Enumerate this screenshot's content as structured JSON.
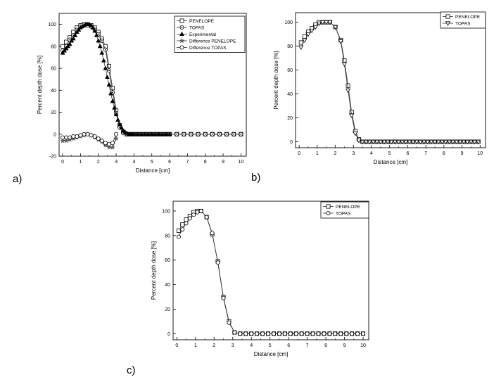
{
  "panel_labels": [
    "a)",
    "b)",
    "c)"
  ],
  "chart_data": [
    {
      "type": "line",
      "panel": "a)",
      "xlabel": "Distance [cm]",
      "ylabel": "Percent depth dose [%]",
      "xlim": [
        -0.2,
        10.3
      ],
      "ylim": [
        -20,
        110
      ],
      "xticks": [
        "0",
        "1",
        "2",
        "3",
        "4",
        "5",
        "6",
        "7",
        "8",
        "9",
        "10"
      ],
      "yticks": [
        "-20",
        "0",
        "20",
        "40",
        "60",
        "80",
        "100"
      ],
      "grid": false,
      "legend_position": "top-right",
      "series": [
        {
          "name": "PENELOPE",
          "marker": "square-open",
          "x": [
            0,
            0.2,
            0.4,
            0.6,
            0.8,
            1.0,
            1.2,
            1.4,
            1.6,
            1.8,
            2.0,
            2.2,
            2.4,
            2.6,
            2.8,
            3.0,
            3.2,
            3.4,
            3.6,
            3.8,
            4.0,
            4.2,
            4.4,
            4.6,
            4.8,
            5.0,
            5.2,
            5.4,
            5.6,
            5.8,
            6.0,
            6.4,
            6.8,
            7.2,
            7.6,
            8.0,
            8.4,
            8.8,
            9.2,
            9.6,
            10.0
          ],
          "y": [
            80,
            84,
            88,
            93,
            97,
            99,
            100,
            100,
            99,
            97,
            93,
            87,
            80,
            62,
            42,
            22,
            8,
            2,
            0,
            0,
            0,
            0,
            0,
            0,
            0,
            0,
            0,
            0,
            0,
            0,
            0,
            0,
            0,
            0,
            0,
            0,
            0,
            0,
            0,
            0,
            0
          ]
        },
        {
          "name": "TOPAS",
          "marker": "circle-dot",
          "x": [
            0,
            0.2,
            0.4,
            0.6,
            0.8,
            1.0,
            1.2,
            1.4,
            1.6,
            1.8,
            2.0,
            2.2,
            2.4,
            2.6,
            2.8,
            3.0,
            3.2,
            3.4,
            3.6,
            3.8,
            4.0,
            4.2,
            4.4,
            4.6,
            4.8,
            5.0,
            5.2,
            5.4,
            5.6,
            5.8,
            6.0,
            6.4,
            6.8,
            7.2,
            7.6,
            8.0,
            8.4,
            8.8,
            9.2,
            9.6,
            10.0
          ],
          "y": [
            76,
            80,
            86,
            90,
            95,
            98,
            100,
            99,
            98,
            95,
            91,
            85,
            77,
            58,
            38,
            19,
            6,
            1,
            0,
            0,
            0,
            0,
            0,
            0,
            0,
            0,
            0,
            0,
            0,
            0,
            0,
            0,
            0,
            0,
            0,
            0,
            0,
            0,
            0,
            0,
            0
          ]
        },
        {
          "name": "Experimental",
          "marker": "triangle-filled",
          "x": [
            0,
            0.1,
            0.2,
            0.3,
            0.4,
            0.5,
            0.6,
            0.7,
            0.8,
            0.9,
            1.0,
            1.1,
            1.2,
            1.3,
            1.4,
            1.5,
            1.6,
            1.7,
            1.8,
            1.9,
            2.0,
            2.1,
            2.2,
            2.3,
            2.4,
            2.5,
            2.6,
            2.7,
            2.8,
            2.9,
            3.0,
            3.1,
            3.2,
            3.3,
            3.4,
            3.5,
            3.6,
            3.7,
            3.8,
            3.9,
            4.0,
            4.2,
            4.4,
            4.6,
            4.8,
            5.0,
            5.2,
            5.4,
            5.6,
            5.8,
            6.0
          ],
          "y": [
            74,
            76,
            78,
            80,
            82,
            85,
            87,
            90,
            93,
            95,
            97,
            98,
            99,
            100,
            100,
            100,
            99,
            97,
            94,
            90,
            85,
            80,
            74,
            67,
            60,
            52,
            45,
            37,
            30,
            24,
            18,
            13,
            9,
            6,
            3,
            2,
            1,
            0,
            0,
            0,
            0,
            0,
            0,
            0,
            0,
            0,
            0,
            0,
            0,
            0,
            0
          ]
        },
        {
          "name": "Difference PENELOPE",
          "marker": "star",
          "x": [
            0,
            0.2,
            0.4,
            0.6,
            0.8,
            1.0,
            1.2,
            1.4,
            1.6,
            1.8,
            2.0,
            2.2,
            2.4,
            2.6,
            2.8,
            3.0
          ],
          "y": [
            -6,
            -6,
            -5,
            -4,
            -3,
            -2,
            -1,
            0,
            -1,
            -3,
            -5,
            -7,
            -10,
            -12,
            -12,
            -4
          ]
        },
        {
          "name": "Difference TOPAS",
          "marker": "circle-open",
          "x": [
            0,
            0.2,
            0.4,
            0.6,
            0.8,
            1.0,
            1.2,
            1.4,
            1.6,
            1.8,
            2.0,
            2.2,
            2.4,
            2.6,
            2.8,
            3.0
          ],
          "y": [
            -3,
            -3,
            -3,
            -2,
            -2,
            -1,
            0,
            0,
            -1,
            -2,
            -4,
            -6,
            -8,
            -9,
            -8,
            0
          ]
        }
      ]
    },
    {
      "type": "line",
      "panel": "b)",
      "xlabel": "Distance [cm]",
      "ylabel": "Percent depth dose [%]",
      "xlim": [
        -0.2,
        10.3
      ],
      "ylim": [
        -5,
        108
      ],
      "xticks": [
        "0",
        "1",
        "2",
        "3",
        "4",
        "5",
        "6",
        "7",
        "8",
        "9",
        "10"
      ],
      "yticks": [
        "0",
        "20",
        "40",
        "60",
        "80",
        "100"
      ],
      "grid": false,
      "legend_position": "top-right",
      "series": [
        {
          "name": "PENELOPE",
          "marker": "square-open",
          "x": [
            0.1,
            0.3,
            0.5,
            0.7,
            0.9,
            1.1,
            1.3,
            1.5,
            1.7,
            2.0,
            2.3,
            2.5,
            2.7,
            2.9,
            3.1,
            3.3,
            3.5,
            3.7,
            3.9,
            4.1,
            4.3,
            4.5,
            4.7,
            4.9,
            5.1,
            5.3,
            5.5,
            5.7,
            5.9,
            6.1,
            6.3,
            6.5,
            6.7,
            6.9,
            7.1,
            7.3,
            7.5,
            7.7,
            7.9,
            8.1,
            8.3,
            8.5,
            8.7,
            8.9,
            9.1,
            9.3,
            9.5,
            9.7,
            9.9
          ],
          "y": [
            83,
            88,
            92,
            95,
            98,
            100,
            100,
            100,
            100,
            96,
            85,
            68,
            47,
            25,
            9,
            2,
            0,
            0,
            0,
            0,
            0,
            0,
            0,
            0,
            0,
            0,
            0,
            0,
            0,
            0,
            0,
            0,
            0,
            0,
            0,
            0,
            0,
            0,
            0,
            0,
            0,
            0,
            0,
            0,
            0,
            0,
            0,
            0,
            0
          ]
        },
        {
          "name": "TOPAS",
          "marker": "triangle-down-open",
          "x": [
            0.1,
            0.3,
            0.5,
            0.7,
            0.9,
            1.1,
            1.3,
            1.5,
            1.7,
            2.0,
            2.3,
            2.5,
            2.7,
            2.9,
            3.1,
            3.3,
            3.5,
            3.7,
            3.9,
            4.1,
            4.3,
            4.5,
            4.7,
            4.9,
            5.1,
            5.3,
            5.5,
            5.7,
            5.9,
            6.1,
            6.3,
            6.5,
            6.7,
            6.9,
            7.1,
            7.3,
            7.5,
            7.7,
            7.9,
            8.1,
            8.3,
            8.5,
            8.7,
            8.9,
            9.1,
            9.3,
            9.5,
            9.7,
            9.9
          ],
          "y": [
            79,
            85,
            90,
            93,
            96,
            99,
            100,
            100,
            100,
            96,
            84,
            65,
            43,
            22,
            7,
            1,
            0,
            0,
            0,
            0,
            0,
            0,
            0,
            0,
            0,
            0,
            0,
            0,
            0,
            0,
            0,
            0,
            0,
            0,
            0,
            0,
            0,
            0,
            0,
            0,
            0,
            0,
            0,
            0,
            0,
            0,
            0,
            0,
            0
          ]
        }
      ]
    },
    {
      "type": "line",
      "panel": "c)",
      "xlabel": "Distance [cm]",
      "ylabel": "Percent depth dose [%]",
      "xlim": [
        -0.2,
        10.3
      ],
      "ylim": [
        -5,
        108
      ],
      "xticks": [
        "0",
        "1",
        "2",
        "3",
        "4",
        "5",
        "6",
        "7",
        "8",
        "9",
        "10"
      ],
      "yticks": [
        "0",
        "20",
        "40",
        "60",
        "80",
        "100"
      ],
      "grid": false,
      "legend_position": "top-right",
      "series": [
        {
          "name": "PENELOPE",
          "marker": "square-open",
          "x": [
            0.1,
            0.3,
            0.5,
            0.7,
            0.9,
            1.1,
            1.3,
            1.6,
            1.9,
            2.2,
            2.5,
            2.8,
            3.1,
            3.4,
            3.7,
            4.0,
            4.3,
            4.6,
            4.9,
            5.2,
            5.5,
            5.8,
            6.1,
            6.4,
            6.7,
            7.0,
            7.3,
            7.6,
            7.9,
            8.2,
            8.5,
            8.8,
            9.1,
            9.4,
            9.7,
            10.0
          ],
          "y": [
            84,
            89,
            93,
            96,
            99,
            100,
            100,
            95,
            81,
            59,
            30,
            10,
            1,
            0,
            0,
            0,
            0,
            0,
            0,
            0,
            0,
            0,
            0,
            0,
            0,
            0,
            0,
            0,
            0,
            0,
            0,
            0,
            0,
            0,
            0,
            0
          ]
        },
        {
          "name": "TOPAS",
          "marker": "circle-open",
          "x": [
            0.1,
            0.3,
            0.5,
            0.7,
            0.9,
            1.1,
            1.3,
            1.6,
            1.9,
            2.2,
            2.5,
            2.8,
            3.1,
            3.4,
            3.7,
            4.0,
            4.3,
            4.6,
            4.9,
            5.2,
            5.5,
            5.8,
            6.1,
            6.4,
            6.7,
            7.0,
            7.3,
            7.6,
            7.9,
            8.2,
            8.5,
            8.8,
            9.1,
            9.4,
            9.7,
            10.0
          ],
          "y": [
            79,
            85,
            90,
            94,
            97,
            99,
            100,
            95,
            82,
            58,
            29,
            9,
            1,
            0,
            0,
            0,
            0,
            0,
            0,
            0,
            0,
            0,
            0,
            0,
            0,
            0,
            0,
            0,
            0,
            0,
            0,
            0,
            0,
            0,
            0,
            0
          ]
        }
      ]
    }
  ]
}
